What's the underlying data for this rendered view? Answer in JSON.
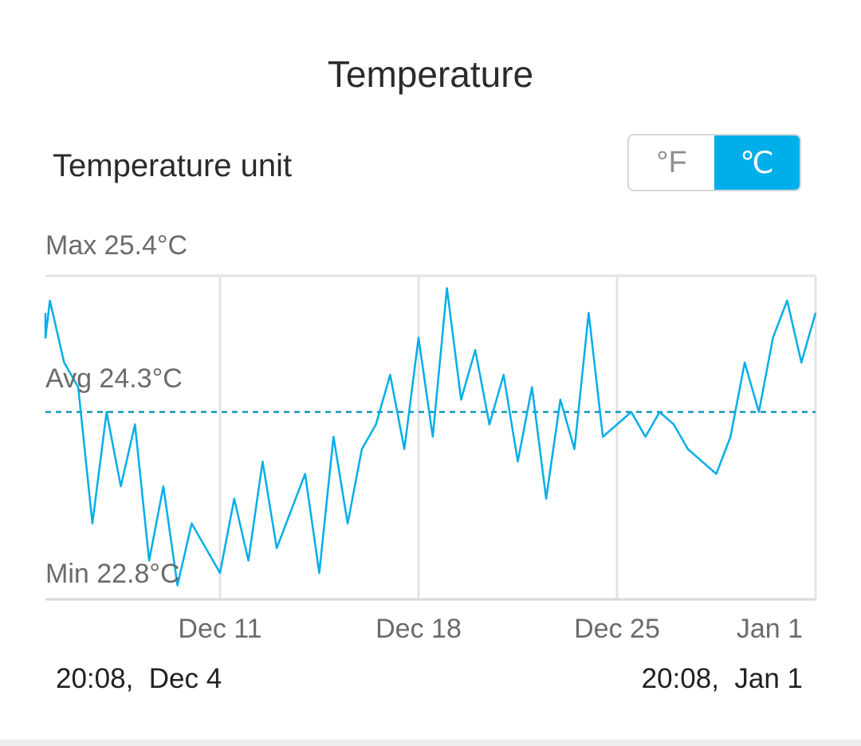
{
  "page": {
    "title": "Temperature"
  },
  "unit_setting": {
    "label": "Temperature unit",
    "options": [
      "°F",
      "℃"
    ],
    "selected": "℃",
    "accent_color": "#00aee9"
  },
  "stats": {
    "max_label": "Max 25.4°C",
    "avg_label": "Avg 24.3°C",
    "min_label": "Min 22.8°C"
  },
  "range": {
    "start": "20:08,  Dec 4",
    "end": "20:08,  Jan 1"
  },
  "chart_data": {
    "type": "line",
    "x_tick_labels": [
      "Dec 11",
      "Dec 18",
      "Dec 25",
      "Jan 1"
    ],
    "x_tick_days": [
      7,
      14,
      21,
      28
    ],
    "x_range_days": [
      0,
      28
    ],
    "y_range": [
      22.8,
      25.4
    ],
    "average": 24.3,
    "grid": "vertical lines at ticks",
    "line_color": "#00aee9",
    "series": [
      {
        "x": [
          0,
          0.5,
          1,
          1.5,
          2,
          2.5,
          3,
          3.5,
          4,
          4.5,
          5,
          5.5,
          6,
          6.5,
          7,
          7.5,
          8,
          8.5,
          9,
          9.5,
          10,
          10.5,
          11,
          11.5,
          12,
          12.5,
          13,
          13.5,
          14,
          14.5,
          15,
          15.5,
          16,
          16.5,
          17,
          17.5,
          18,
          18.5,
          19,
          19.5,
          20,
          20.5,
          21,
          21.5,
          22,
          22.5,
          23,
          23.5,
          24,
          24.5,
          25,
          25.5,
          26,
          26.5,
          27,
          27.5,
          28
        ],
        "values": [
          25.1,
          24.9,
          25.2,
          24.7,
          24.5,
          23.4,
          24.3,
          23.7,
          24.2,
          23.1,
          23.7,
          22.9,
          23.4,
          23.2,
          23.0,
          23.6,
          23.1,
          23.9,
          23.2,
          23.5,
          23.8,
          23.0,
          24.1,
          23.4,
          24.0,
          24.2,
          24.6,
          24.0,
          24.9,
          24.1,
          25.3,
          24.4,
          24.8,
          24.2,
          24.6,
          23.9,
          24.5,
          23.6,
          24.4,
          24.0,
          25.1,
          24.1,
          24.2,
          24.3,
          24.1,
          24.3,
          24.2,
          24.0,
          23.9,
          23.8,
          24.1,
          24.7,
          24.3,
          24.9,
          25.2,
          24.7,
          25.1
        ]
      }
    ]
  }
}
